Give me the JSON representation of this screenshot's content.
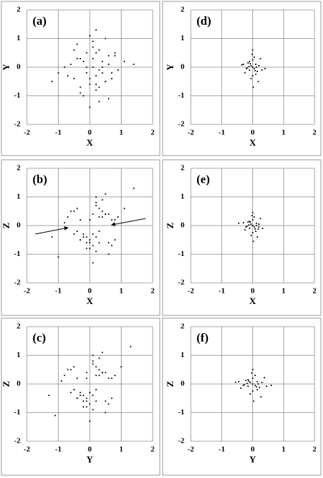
{
  "chart_data": [
    {
      "type": "scatter",
      "title": "(a)",
      "xlabel": "X",
      "ylabel": "Y",
      "xlim": [
        -2,
        2
      ],
      "ylim": [
        -2,
        2
      ],
      "xticks": [
        -2,
        -1,
        0,
        1,
        2
      ],
      "yticks": [
        -2,
        -1,
        0,
        1,
        2
      ],
      "grid": true,
      "color": "#000000",
      "x": [
        0.1,
        -0.3,
        0.4,
        0.2,
        -0.5,
        0.6,
        0.0,
        -0.2,
        0.3,
        0.8,
        -0.7,
        0.1,
        0.5,
        -0.1,
        0.2,
        -0.4,
        0.7,
        0.3,
        -0.6,
        0.0,
        0.9,
        -0.3,
        0.4,
        0.1,
        -0.8,
        0.2,
        0.6,
        -0.2,
        0.5,
        -0.1,
        1.1,
        -1.0,
        0.3,
        0.0,
        0.4,
        -0.5,
        0.2,
        0.7,
        -0.3,
        0.1,
        1.4,
        -1.2,
        0.5,
        0.0,
        -0.4,
        0.3,
        0.8,
        -0.1,
        0.2,
        0.6
      ],
      "y": [
        0.0,
        0.3,
        -0.2,
        0.5,
        -0.4,
        0.1,
        -0.6,
        0.2,
        -0.1,
        0.4,
        -0.3,
        0.7,
        -0.5,
        0.0,
        -0.8,
        0.3,
        -0.2,
        0.6,
        0.1,
        -0.4,
        -0.1,
        -0.7,
        0.2,
        0.9,
        0.0,
        -0.3,
        0.4,
        -1.0,
        -0.5,
        0.5,
        0.2,
        -0.2,
        -1.2,
        1.1,
        0.0,
        0.6,
        -0.6,
        -0.4,
        -0.9,
        0.3,
        0.1,
        -0.5,
        1.0,
        -1.4,
        0.8,
        -0.7,
        0.5,
        -0.2,
        1.3,
        -1.1
      ]
    },
    {
      "type": "scatter",
      "title": "(b)",
      "xlabel": "X",
      "ylabel": "Z",
      "xlim": [
        -2,
        2
      ],
      "ylim": [
        -2,
        2
      ],
      "xticks": [
        -2,
        -1,
        0,
        1,
        2
      ],
      "yticks": [
        -2,
        -1,
        0,
        1,
        2
      ],
      "grid": true,
      "color": "#000000",
      "x": [
        0.1,
        -0.3,
        0.4,
        0.2,
        -0.5,
        0.6,
        0.0,
        -0.2,
        0.3,
        0.8,
        -0.7,
        0.1,
        0.5,
        -0.1,
        0.2,
        -0.4,
        0.7,
        0.3,
        -0.6,
        0.0,
        0.9,
        -0.3,
        0.4,
        0.1,
        -0.8,
        0.2,
        0.6,
        -0.2,
        0.5,
        -0.1,
        1.1,
        -1.0,
        0.3,
        0.0,
        0.4,
        -0.5,
        0.2,
        0.7,
        -0.3,
        0.1,
        1.4,
        -1.2,
        0.5,
        0.0,
        -0.4,
        0.3,
        0.8,
        -0.1,
        0.2,
        0.6
      ],
      "y": [
        0.4,
        -0.5,
        0.3,
        -0.4,
        0.5,
        -0.6,
        0.2,
        -0.3,
        0.6,
        -0.5,
        0.3,
        -0.7,
        0.4,
        -0.4,
        0.7,
        -0.2,
        0.2,
        -0.6,
        0.5,
        -0.8,
        0.3,
        -0.5,
        0.9,
        -0.3,
        0.1,
        -0.9,
        0.4,
        -0.4,
        1.1,
        -0.6,
        0.6,
        -1.1,
        0.3,
        -0.5,
        0.5,
        -0.3,
        0.8,
        -0.7,
        0.2,
        -1.3,
        1.3,
        -0.4,
        0.4,
        -0.6,
        0.6,
        -0.2,
        0.2,
        -0.8,
        1.0,
        -1.0
      ]
    },
    {
      "type": "scatter",
      "title": "(c)",
      "xlabel": "Y",
      "ylabel": "Z",
      "xlim": [
        -2,
        2
      ],
      "ylim": [
        -2,
        2
      ],
      "xticks": [
        -2,
        -1,
        0,
        1,
        2
      ],
      "yticks": [
        -2,
        -1,
        0,
        1,
        2
      ],
      "grid": true,
      "color": "#000000",
      "x": [
        -0.1,
        -0.4,
        0.3,
        0.1,
        -0.6,
        0.5,
        -0.1,
        -0.3,
        0.2,
        0.7,
        -0.8,
        0.0,
        0.4,
        -0.2,
        0.1,
        -0.5,
        0.6,
        0.2,
        -0.7,
        -0.1,
        0.8,
        -0.4,
        0.3,
        0.0,
        -0.9,
        0.1,
        0.5,
        -0.3,
        0.4,
        -0.2,
        1.0,
        -1.1,
        0.2,
        -0.1,
        0.3,
        -0.6,
        0.1,
        0.6,
        -0.4,
        0.0,
        1.3,
        -1.3,
        0.4,
        -0.1,
        -0.5,
        0.2,
        0.7,
        -0.2,
        0.1,
        0.5
      ],
      "y": [
        0.4,
        -0.5,
        0.3,
        -0.4,
        0.5,
        -0.6,
        0.2,
        -0.3,
        0.6,
        -0.5,
        0.3,
        -0.7,
        0.4,
        -0.4,
        0.7,
        -0.2,
        0.2,
        -0.6,
        0.5,
        -0.8,
        0.3,
        -0.5,
        0.9,
        -0.3,
        0.1,
        -0.9,
        0.4,
        -0.4,
        1.1,
        -0.6,
        0.6,
        -1.1,
        0.3,
        -0.5,
        0.5,
        -0.3,
        0.8,
        -0.7,
        0.2,
        -1.3,
        1.3,
        -0.4,
        0.4,
        -0.6,
        0.6,
        -0.2,
        0.2,
        -0.8,
        1.0,
        -1.0
      ]
    },
    {
      "type": "scatter",
      "title": "(d)",
      "xlabel": "X",
      "ylabel": "Y",
      "xlim": [
        -2,
        2
      ],
      "ylim": [
        -2,
        2
      ],
      "xticks": [
        -2,
        -1,
        0,
        1,
        2
      ],
      "yticks": [
        -2,
        -1,
        0,
        1,
        2
      ],
      "grid": true,
      "color": "#000000",
      "x": [
        0.0,
        0.1,
        -0.1,
        0.05,
        -0.05,
        0.15,
        -0.15,
        0.2,
        -0.2,
        0.0,
        0.1,
        -0.1,
        0.3,
        -0.3,
        0.05,
        0.0,
        -0.05,
        0.12,
        -0.12,
        0.25,
        -0.25,
        0.08,
        -0.08,
        0.4,
        -0.35,
        0.0,
        0.18,
        -0.18,
        0.02,
        -0.02
      ],
      "y": [
        0.0,
        0.1,
        -0.1,
        -0.05,
        0.05,
        -0.15,
        0.15,
        0.05,
        -0.05,
        0.25,
        -0.25,
        0.2,
        -0.1,
        0.1,
        0.35,
        -0.3,
        -0.4,
        0.0,
        0.02,
        0.3,
        -0.2,
        -0.12,
        0.12,
        -0.05,
        0.08,
        0.6,
        -0.5,
        -0.02,
        -0.7,
        0.45
      ]
    },
    {
      "type": "scatter",
      "title": "(e)",
      "xlabel": "X",
      "ylabel": "Z",
      "xlim": [
        -2,
        2
      ],
      "ylim": [
        -2,
        2
      ],
      "xticks": [
        -2,
        -1,
        0,
        1,
        2
      ],
      "yticks": [
        -2,
        -1,
        0,
        1,
        2
      ],
      "grid": true,
      "color": "#000000",
      "x": [
        0.0,
        0.12,
        -0.1,
        0.05,
        -0.05,
        0.18,
        -0.15,
        0.2,
        -0.22,
        0.0,
        0.1,
        -0.1,
        0.32,
        -0.3,
        0.05,
        0.0,
        -0.05,
        0.12,
        -0.12,
        0.25,
        -0.25,
        0.08,
        -0.08,
        0.2,
        -0.45,
        0.0,
        0.15,
        -0.18,
        0.02,
        -0.02
      ],
      "y": [
        0.0,
        0.08,
        -0.1,
        -0.05,
        0.05,
        -0.12,
        0.12,
        0.05,
        -0.05,
        0.2,
        -0.2,
        0.15,
        -0.1,
        0.1,
        0.3,
        -0.25,
        -0.35,
        0.0,
        0.02,
        0.25,
        -0.15,
        -0.12,
        0.12,
        -0.05,
        0.08,
        0.45,
        -0.4,
        -0.02,
        -0.55,
        0.35
      ]
    },
    {
      "type": "scatter",
      "title": "(f)",
      "xlabel": "Y",
      "ylabel": "Z",
      "xlim": [
        -2,
        2
      ],
      "ylim": [
        -2,
        2
      ],
      "xticks": [
        -2,
        -1,
        0,
        1,
        2
      ],
      "yticks": [
        -2,
        -1,
        0,
        1,
        2
      ],
      "grid": true,
      "color": "#000000",
      "x": [
        0.0,
        0.15,
        -0.15,
        0.08,
        -0.08,
        0.22,
        -0.22,
        0.3,
        -0.3,
        0.0,
        0.15,
        -0.15,
        0.45,
        -0.45,
        0.08,
        0.0,
        -0.08,
        0.18,
        -0.18,
        0.38,
        -0.38,
        0.12,
        -0.12,
        0.6,
        -0.55,
        0.0,
        0.27,
        -0.27,
        0.03,
        -0.03
      ],
      "y": [
        0.0,
        0.08,
        -0.08,
        -0.05,
        0.05,
        -0.12,
        0.12,
        0.05,
        -0.05,
        0.2,
        -0.2,
        0.15,
        -0.08,
        0.08,
        0.3,
        -0.25,
        -0.35,
        0.0,
        0.02,
        0.22,
        -0.15,
        -0.1,
        0.1,
        -0.05,
        0.06,
        0.5,
        -0.45,
        -0.02,
        -0.6,
        0.38
      ]
    }
  ]
}
